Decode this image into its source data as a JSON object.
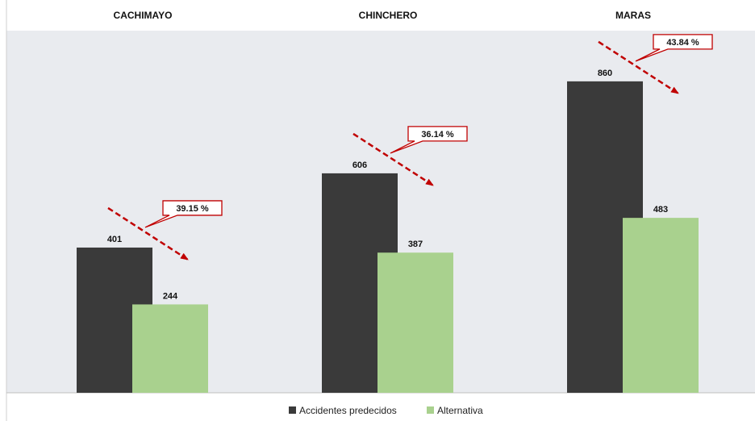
{
  "chart_data": {
    "type": "bar",
    "categories": [
      "CACHIMAYO",
      "CHINCHERO",
      "MARAS"
    ],
    "series": [
      {
        "name": "Accidentes predecidos",
        "values": [
          401,
          606,
          860
        ],
        "color": "#3a3a3a"
      },
      {
        "name": "Alternativa",
        "values": [
          244,
          387,
          483
        ],
        "color": "#a9d18e"
      }
    ],
    "reductions": [
      "39.15 %",
      "36.14 %",
      "43.84 %"
    ],
    "ylim": [
      0,
      1000
    ],
    "grid": false,
    "legend_position": "bottom-center",
    "colors": {
      "plot_background": "#e9ebef",
      "arrow": "#c00000",
      "callout_border": "#c00000",
      "callout_fill": "#ffffff"
    }
  }
}
